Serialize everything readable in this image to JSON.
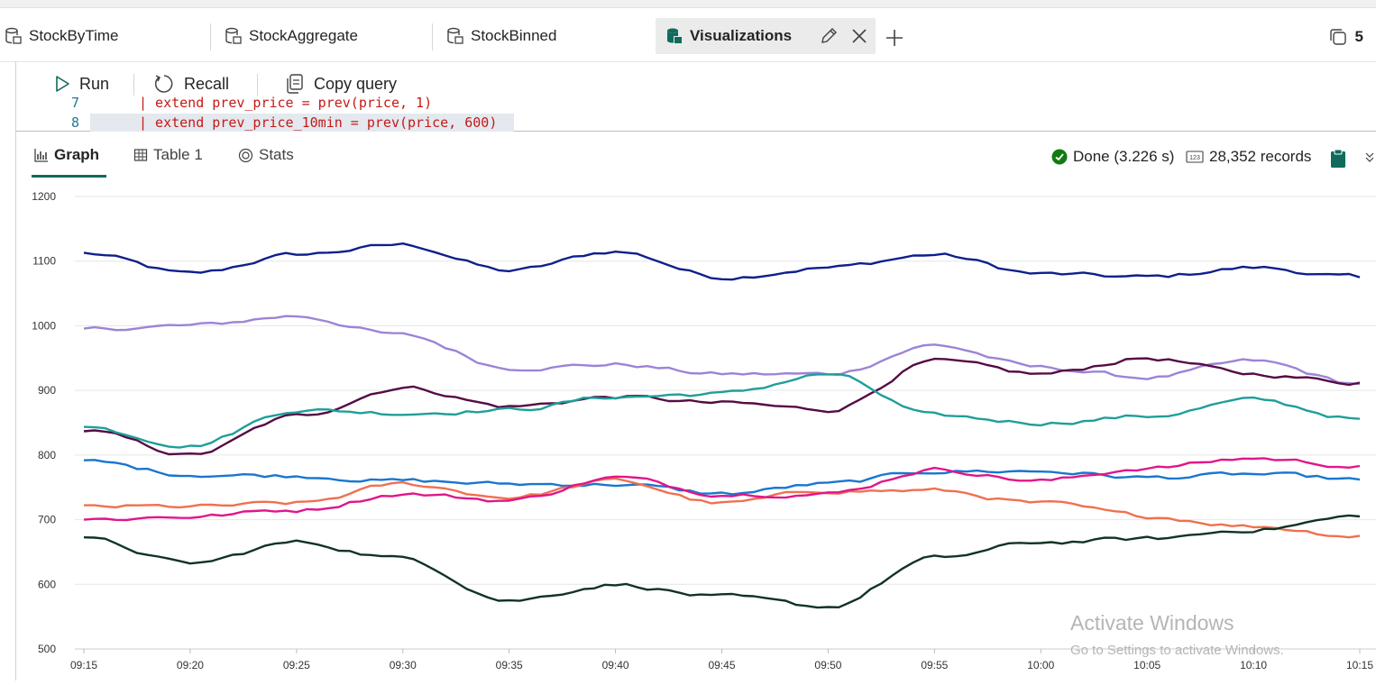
{
  "tabs": [
    {
      "label": "StockByTime",
      "active": false
    },
    {
      "label": "StockAggregate",
      "active": false
    },
    {
      "label": "StockBinned",
      "active": false
    },
    {
      "label": "Visualizations",
      "active": true
    }
  ],
  "tab_count": "5",
  "toolbar": {
    "run": "Run",
    "recall": "Recall",
    "copy_query": "Copy query"
  },
  "editor": {
    "line7_number": "7",
    "line7_text": "| extend prev_price = prev(price, 1)",
    "line8_number": "8",
    "line8_text": "| extend prev_price_10min = prev(price, 600)"
  },
  "results": {
    "tabs": [
      "Graph",
      "Table 1",
      "Stats"
    ],
    "status": "Done (3.226 s)",
    "records": "28,352 records"
  },
  "watermark": {
    "line1": "Activate Windows",
    "line2": "Go to Settings to activate Windows."
  },
  "icons": [
    "query-tab-icon",
    "pencil-icon",
    "close-icon",
    "plus-icon",
    "copy-tabs-icon",
    "play-icon",
    "recall-icon",
    "copy-icon",
    "bar-chart-icon",
    "table-icon",
    "stats-icon",
    "check-circle-icon",
    "records-icon",
    "clipboard-icon",
    "chevron-double-down-icon"
  ],
  "colors": {
    "accent": "#0f6b5c",
    "done": "#107c10"
  },
  "chart_data": {
    "type": "line",
    "x": [
      "09:15",
      "09:20",
      "09:25",
      "09:30",
      "09:35",
      "09:40",
      "09:45",
      "09:50",
      "09:55",
      "10:00",
      "10:05",
      "10:10",
      "10:15"
    ],
    "ylim": [
      500,
      1200
    ],
    "yticks": [
      500,
      600,
      700,
      800,
      900,
      1000,
      1100,
      1200
    ],
    "grid": true,
    "series": [
      {
        "color": "#0e1f8c",
        "values": [
          1112,
          1080,
          1110,
          1125,
          1085,
          1115,
          1075,
          1090,
          1110,
          1080,
          1075,
          1090,
          1075
        ]
      },
      {
        "color": "#9b84d6",
        "values": [
          995,
          1000,
          1015,
          985,
          935,
          940,
          925,
          925,
          970,
          935,
          920,
          945,
          910
        ]
      },
      {
        "color": "#550b44",
        "values": [
          838,
          800,
          860,
          905,
          875,
          890,
          880,
          870,
          945,
          925,
          950,
          925,
          912
        ]
      },
      {
        "color": "#1f9e9a",
        "values": [
          843,
          815,
          870,
          865,
          870,
          890,
          895,
          925,
          860,
          850,
          860,
          885,
          856
        ]
      },
      {
        "color": "#1976cf",
        "values": [
          790,
          770,
          768,
          760,
          755,
          755,
          740,
          755,
          775,
          775,
          765,
          770,
          762
        ]
      },
      {
        "color": "#f07050",
        "values": [
          720,
          720,
          725,
          755,
          735,
          760,
          725,
          745,
          745,
          725,
          705,
          690,
          675
        ]
      },
      {
        "color": "#e0168a",
        "values": [
          700,
          705,
          715,
          740,
          730,
          765,
          740,
          740,
          778,
          760,
          780,
          795,
          783
        ]
      },
      {
        "color": "#113322",
        "values": [
          670,
          632,
          665,
          640,
          575,
          600,
          580,
          565,
          640,
          665,
          670,
          685,
          705
        ]
      }
    ]
  }
}
